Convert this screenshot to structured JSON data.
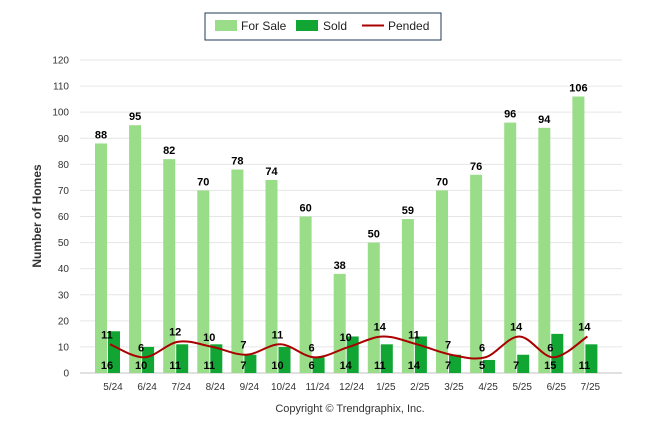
{
  "legend": {
    "for_sale": "For Sale",
    "sold": "Sold",
    "pended": "Pended"
  },
  "credit": "Copyright © Trendgraphix, Inc.",
  "colors": {
    "for_sale": "#99dd88",
    "sold": "#11a633",
    "pended": "#aa0000"
  },
  "chart_data": {
    "type": "bar",
    "categories": [
      "5/24",
      "6/24",
      "7/24",
      "8/24",
      "9/24",
      "10/24",
      "11/24",
      "12/24",
      "1/25",
      "2/25",
      "3/25",
      "4/25",
      "5/25",
      "6/25",
      "7/25"
    ],
    "series": [
      {
        "name": "For Sale",
        "type": "bar",
        "values": [
          88,
          95,
          82,
          70,
          78,
          74,
          60,
          38,
          50,
          59,
          70,
          76,
          96,
          94,
          106
        ]
      },
      {
        "name": "Sold",
        "type": "bar",
        "values": [
          16,
          10,
          11,
          11,
          7,
          10,
          6,
          14,
          11,
          14,
          7,
          5,
          7,
          15,
          11
        ]
      },
      {
        "name": "Pended",
        "type": "line",
        "values": [
          11,
          6,
          12,
          10,
          7,
          11,
          6,
          10,
          14,
          11,
          7,
          6,
          14,
          6,
          14
        ]
      }
    ],
    "xlabel": "",
    "ylabel": "Number of Homes",
    "ylim": [
      0,
      120
    ],
    "yticks": [
      0,
      10,
      20,
      30,
      40,
      50,
      60,
      70,
      80,
      90,
      100,
      110,
      120
    ],
    "grid": true,
    "legend_position": "top-center"
  }
}
